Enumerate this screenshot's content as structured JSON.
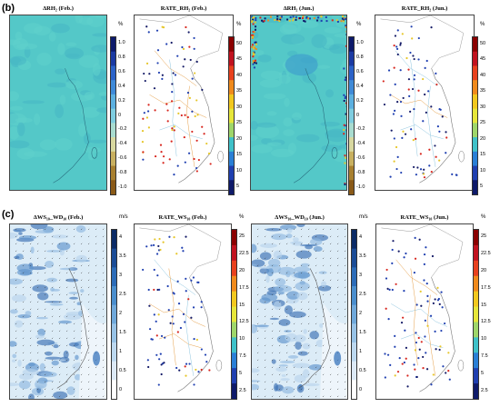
{
  "figure": {
    "row_b_label": "(b)",
    "row_c_label": "(c)"
  },
  "panels": [
    {
      "id": "b1",
      "title": "ΔRH₂ (Feb.)",
      "kind": "diff-rh",
      "cbar": "div",
      "unit": "%",
      "ticks": [
        "1.0",
        "0.8",
        "0.6",
        "0.4",
        "0.2",
        "0",
        "-0.2",
        "-0.4",
        "-0.6",
        "-0.8",
        "-1.0"
      ]
    },
    {
      "id": "b2",
      "title": "RATE_RH₂ (Feb.)",
      "kind": "station",
      "cbar": "rainbow",
      "unit": "%",
      "ticks": [
        "50",
        "45",
        "40",
        "35",
        "30",
        "25",
        "20",
        "15",
        "10",
        "5"
      ]
    },
    {
      "id": "b3",
      "title": "ΔRH₂ (Jun.)",
      "kind": "diff-rh",
      "cbar": "div",
      "unit": "%",
      "ticks": [
        "1.0",
        "0.8",
        "0.6",
        "0.4",
        "0.2",
        "0",
        "-0.2",
        "-0.4",
        "-0.6",
        "-0.8",
        "-1.0"
      ]
    },
    {
      "id": "b4",
      "title": "RATE_RH₂ (Jun.)",
      "kind": "station",
      "cbar": "rainbow",
      "unit": "%",
      "ticks": [
        "50",
        "45",
        "40",
        "35",
        "30",
        "25",
        "20",
        "15",
        "10",
        "5"
      ]
    },
    {
      "id": "c1",
      "title": "ΔWS₁₀_WD₁₀ (Feb.)",
      "kind": "diff-ws",
      "cbar": "blues",
      "unit": "m/s",
      "ticks": [
        "4",
        "3.5",
        "3",
        "2.5",
        "2",
        "1.5",
        "1",
        "0.5",
        "0"
      ]
    },
    {
      "id": "c2",
      "title": "RATE_WS₁₀ (Feb.)",
      "kind": "station",
      "cbar": "rainbow",
      "unit": "%",
      "ticks": [
        "25",
        "22.5",
        "20",
        "17.5",
        "15",
        "12.5",
        "10",
        "7.5",
        "5",
        "2.5"
      ]
    },
    {
      "id": "c3",
      "title": "ΔWS₁₀_WD₁₀ (Jun.)",
      "kind": "diff-ws",
      "cbar": "blues",
      "unit": "m/s",
      "ticks": [
        "4",
        "3.5",
        "3",
        "2.5",
        "2",
        "1.5",
        "1",
        "0.5",
        "0"
      ]
    },
    {
      "id": "c4",
      "title": "RATE_WS₁₀ (Jun.)",
      "kind": "station",
      "cbar": "rainbow",
      "unit": "%",
      "ticks": [
        "25",
        "22.5",
        "20",
        "17.5",
        "15",
        "12.5",
        "10",
        "7.5",
        "5",
        "2.5"
      ]
    }
  ],
  "colors": {
    "diff_rh_base": "#54c8c8",
    "ws_base": "#dcecf7",
    "station_red": "#d7261e",
    "station_blue": "#1f3fb0",
    "station_navy": "#141a66",
    "station_yellow": "#e6c62a"
  }
}
